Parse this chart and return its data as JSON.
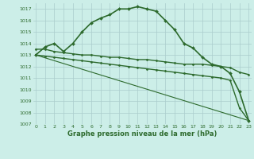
{
  "lines": [
    {
      "x": [
        0,
        1,
        2,
        3,
        4,
        5,
        6,
        7,
        8,
        9,
        10,
        11,
        12,
        13,
        14,
        15,
        16,
        17,
        18,
        19,
        20,
        21,
        22,
        23
      ],
      "y": [
        1013.0,
        1013.7,
        1014.0,
        1013.3,
        1014.0,
        1015.0,
        1015.8,
        1016.2,
        1016.5,
        1017.0,
        1017.0,
        1017.2,
        1017.0,
        1016.8,
        1016.0,
        1015.2,
        1014.0,
        1013.6,
        1012.8,
        1012.2,
        1012.0,
        1011.4,
        1009.8,
        1007.3
      ],
      "color": "#2d6a2d",
      "linewidth": 1.2,
      "marker": "D",
      "markersize": 2.0
    },
    {
      "x": [
        0,
        1,
        2,
        3,
        4,
        5,
        6,
        7,
        8,
        9,
        10,
        11,
        12,
        13,
        14,
        15,
        16,
        17,
        18,
        19,
        20,
        21,
        22,
        23
      ],
      "y": [
        1013.5,
        1013.5,
        1013.3,
        1013.2,
        1013.1,
        1013.0,
        1013.0,
        1012.9,
        1012.8,
        1012.8,
        1012.7,
        1012.6,
        1012.6,
        1012.5,
        1012.4,
        1012.3,
        1012.2,
        1012.2,
        1012.2,
        1012.1,
        1012.0,
        1011.9,
        1011.5,
        1011.3
      ],
      "color": "#2d6a2d",
      "linewidth": 1.0,
      "marker": "D",
      "markersize": 1.5
    },
    {
      "x": [
        0,
        1,
        2,
        3,
        4,
        5,
        6,
        7,
        8,
        9,
        10,
        11,
        12,
        13,
        14,
        15,
        16,
        17,
        18,
        19,
        20,
        21,
        22,
        23
      ],
      "y": [
        1013.0,
        1012.9,
        1012.8,
        1012.7,
        1012.6,
        1012.5,
        1012.4,
        1012.3,
        1012.2,
        1012.1,
        1012.0,
        1011.9,
        1011.8,
        1011.7,
        1011.6,
        1011.5,
        1011.4,
        1011.3,
        1011.2,
        1011.1,
        1011.0,
        1010.8,
        1008.4,
        1007.3
      ],
      "color": "#2d6a2d",
      "linewidth": 1.0,
      "marker": "D",
      "markersize": 1.5
    },
    {
      "x": [
        0,
        23
      ],
      "y": [
        1013.0,
        1007.3
      ],
      "color": "#2d6a2d",
      "linewidth": 0.8,
      "marker": null,
      "markersize": 0
    }
  ],
  "xlim": [
    -0.3,
    23.3
  ],
  "ylim": [
    1007,
    1017.5
  ],
  "yticks": [
    1007,
    1008,
    1009,
    1010,
    1011,
    1012,
    1013,
    1014,
    1015,
    1016,
    1017
  ],
  "xticks": [
    0,
    1,
    2,
    3,
    4,
    5,
    6,
    7,
    8,
    9,
    10,
    11,
    12,
    13,
    14,
    15,
    16,
    17,
    18,
    19,
    20,
    21,
    22,
    23
  ],
  "xlabel": "Graphe pression niveau de la mer (hPa)",
  "background_color": "#cceee8",
  "grid_color": "#aacccc",
  "tick_color": "#2d6a2d",
  "label_color": "#2d6a2d"
}
